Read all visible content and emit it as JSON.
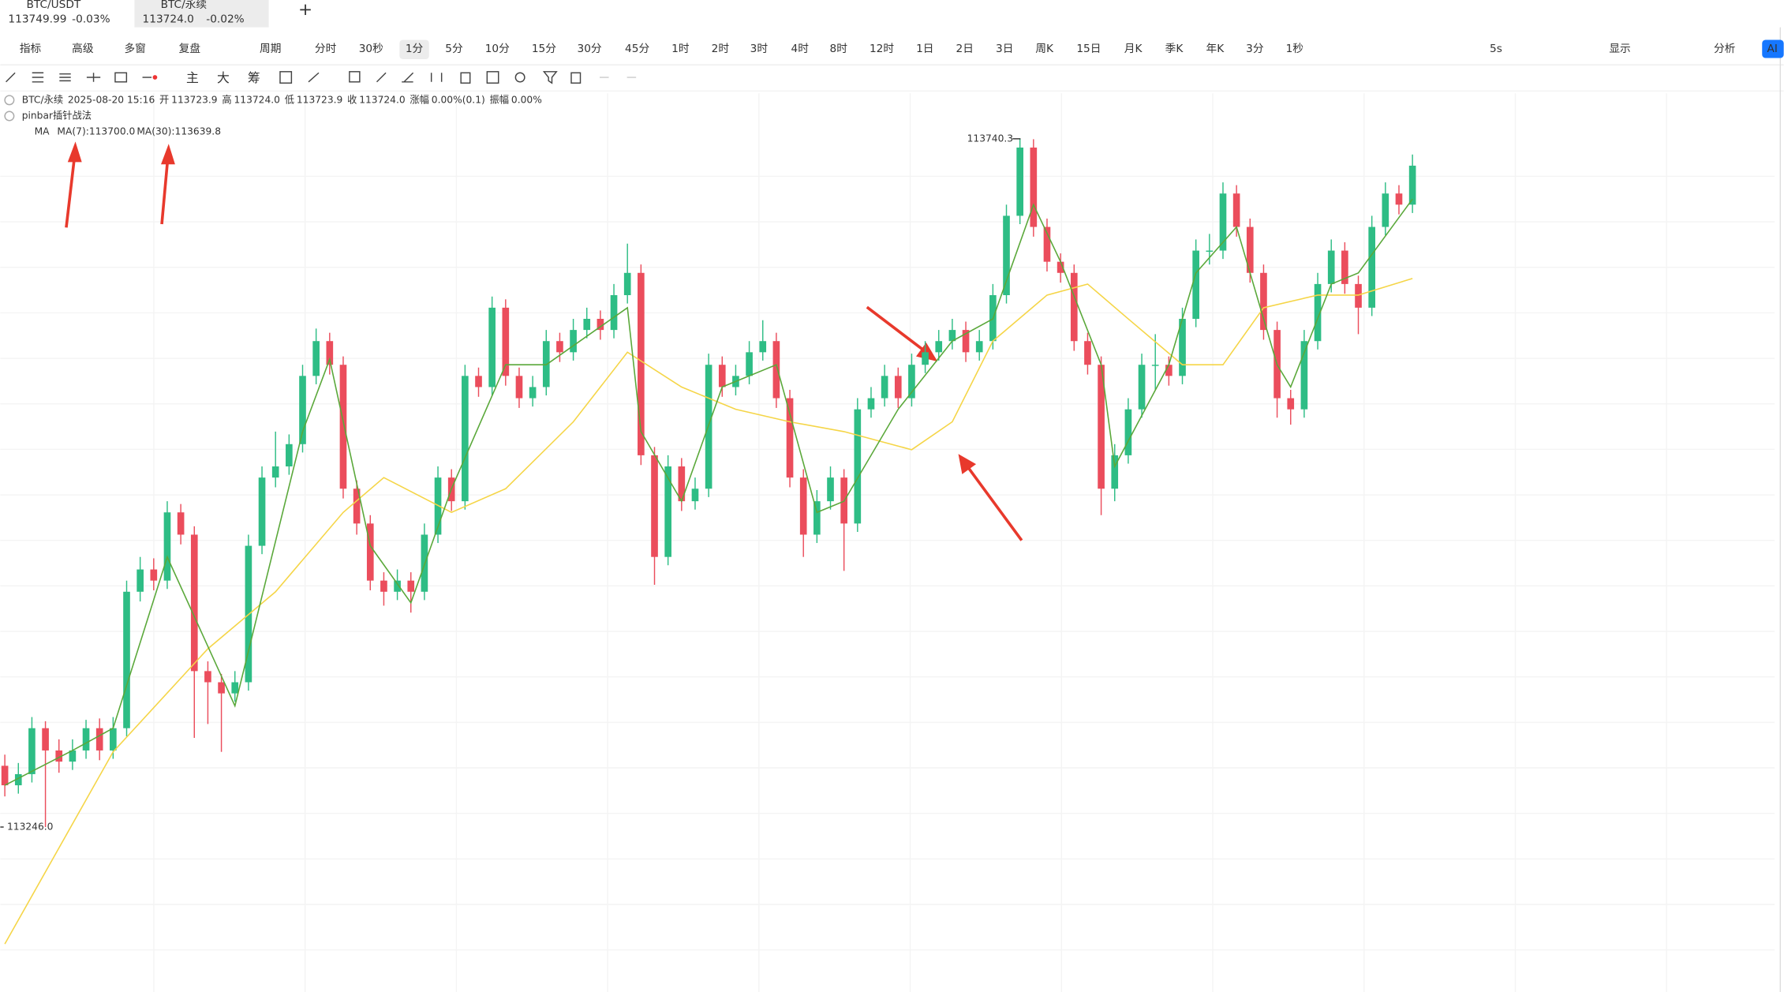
{
  "tabs": [
    {
      "name": "BTC/USDT",
      "price": "113749.99",
      "change": "-0.03%"
    },
    {
      "name": "BTC/永续",
      "price": "113724.0",
      "change": "-0.02%"
    }
  ],
  "toolbar": {
    "left": [
      "指标",
      "高级",
      "多窗",
      "复盘",
      "周期"
    ],
    "periods": [
      "分时",
      "30秒",
      "1分",
      "5分",
      "10分",
      "15分",
      "30分",
      "45分",
      "1时",
      "2时",
      "3时",
      "4时",
      "8时",
      "12时",
      "1日",
      "2日",
      "3日",
      "周K",
      "15日",
      "月K",
      "季K",
      "年K",
      "3分",
      "1秒"
    ],
    "right": [
      "5s",
      "显示",
      "分析",
      "AI"
    ]
  },
  "drawing_tools": [
    "主",
    "大",
    "筹"
  ],
  "info": {
    "symbol": "BTC/永续",
    "time": "2025-08-20 15:16",
    "fields": [
      {
        "label": "开",
        "value": "113723.9"
      },
      {
        "label": "高",
        "value": "113724.0"
      },
      {
        "label": "低",
        "value": "113723.9"
      },
      {
        "label": "收",
        "value": "113724.0"
      },
      {
        "label": "涨幅",
        "value": "0.00%(0.1)"
      },
      {
        "label": "振幅",
        "value": "0.00%"
      }
    ]
  },
  "strategy": "pinbar插针战法",
  "indicator": {
    "name": "MA",
    "ma7": "MA(7):113700.0",
    "ma30": "MA(30):113639.8"
  },
  "chart": {
    "type": "candlestick",
    "up_color": "#2ebd85",
    "down_color": "#eb4d5c",
    "high_marker": {
      "value": 113740.3,
      "label": "113740.3"
    },
    "low_marker": {
      "value": 113246.0,
      "label": "113246.0"
    },
    "candles": [
      [
        113290,
        113298,
        113268,
        113276
      ],
      [
        113276,
        113292,
        113270,
        113284
      ],
      [
        113284,
        113325,
        113278,
        113317
      ],
      [
        113317,
        113322,
        113246,
        113301
      ],
      [
        113301,
        113309,
        113285,
        113293
      ],
      [
        113293,
        113309,
        113287,
        113301
      ],
      [
        113301,
        113323,
        113295,
        113317
      ],
      [
        113317,
        113324,
        113294,
        113301
      ],
      [
        113301,
        113325,
        113295,
        113317
      ],
      [
        113317,
        113423,
        113311,
        113415
      ],
      [
        113415,
        113440,
        113408,
        113431
      ],
      [
        113431,
        113439,
        113416,
        113423
      ],
      [
        113423,
        113480,
        113417,
        113472
      ],
      [
        113472,
        113478,
        113449,
        113456
      ],
      [
        113456,
        113462,
        113310,
        113358
      ],
      [
        113358,
        113365,
        113320,
        113350
      ],
      [
        113350,
        113356,
        113300,
        113342
      ],
      [
        113342,
        113358,
        113336,
        113350
      ],
      [
        113350,
        113456,
        113344,
        113448
      ],
      [
        113448,
        113505,
        113442,
        113497
      ],
      [
        113497,
        113530,
        113490,
        113505
      ],
      [
        113505,
        113528,
        113499,
        113521
      ],
      [
        113521,
        113578,
        113515,
        113570
      ],
      [
        113570,
        113604,
        113564,
        113595
      ],
      [
        113595,
        113601,
        113571,
        113578
      ],
      [
        113578,
        113584,
        113482,
        113489
      ],
      [
        113489,
        113495,
        113456,
        113464
      ],
      [
        113464,
        113470,
        113416,
        113423
      ],
      [
        113423,
        113429,
        113405,
        113415
      ],
      [
        113415,
        113431,
        113409,
        113423
      ],
      [
        113423,
        113429,
        113400,
        113415
      ],
      [
        113415,
        113464,
        113409,
        113456
      ],
      [
        113456,
        113505,
        113450,
        113497
      ],
      [
        113497,
        113503,
        113473,
        113480
      ],
      [
        113480,
        113578,
        113474,
        113570
      ],
      [
        113570,
        113576,
        113555,
        113562
      ],
      [
        113562,
        113627,
        113556,
        113619
      ],
      [
        113619,
        113625,
        113563,
        113570
      ],
      [
        113570,
        113576,
        113547,
        113554
      ],
      [
        113554,
        113570,
        113548,
        113562
      ],
      [
        113562,
        113603,
        113556,
        113595
      ],
      [
        113595,
        113601,
        113580,
        113587
      ],
      [
        113587,
        113611,
        113581,
        113603
      ],
      [
        113603,
        113619,
        113597,
        113611
      ],
      [
        113611,
        113617,
        113596,
        113603
      ],
      [
        113603,
        113636,
        113597,
        113628
      ],
      [
        113628,
        113665,
        113622,
        113644
      ],
      [
        113644,
        113650,
        113506,
        113513
      ],
      [
        113513,
        113519,
        113420,
        113440
      ],
      [
        113440,
        113513,
        113434,
        113505
      ],
      [
        113505,
        113511,
        113473,
        113480
      ],
      [
        113480,
        113497,
        113474,
        113489
      ],
      [
        113489,
        113586,
        113483,
        113578
      ],
      [
        113578,
        113584,
        113555,
        113562
      ],
      [
        113562,
        113578,
        113556,
        113570
      ],
      [
        113570,
        113595,
        113564,
        113587
      ],
      [
        113587,
        113610,
        113581,
        113595
      ],
      [
        113595,
        113601,
        113547,
        113554
      ],
      [
        113554,
        113560,
        113490,
        113497
      ],
      [
        113497,
        113503,
        113440,
        113456
      ],
      [
        113456,
        113488,
        113450,
        113480
      ],
      [
        113480,
        113505,
        113474,
        113497
      ],
      [
        113497,
        113503,
        113430,
        113464
      ],
      [
        113464,
        113554,
        113458,
        113546
      ],
      [
        113546,
        113562,
        113540,
        113554
      ],
      [
        113554,
        113578,
        113548,
        113570
      ],
      [
        113570,
        113576,
        113547,
        113554
      ],
      [
        113554,
        113586,
        113548,
        113578
      ],
      [
        113578,
        113595,
        113572,
        113587
      ],
      [
        113587,
        113603,
        113581,
        113595
      ],
      [
        113595,
        113611,
        113589,
        113603
      ],
      [
        113603,
        113609,
        113580,
        113587
      ],
      [
        113587,
        113603,
        113581,
        113595
      ],
      [
        113595,
        113636,
        113589,
        113628
      ],
      [
        113628,
        113693,
        113622,
        113685
      ],
      [
        113685,
        113740.3,
        113679,
        113734
      ],
      [
        113734,
        113740,
        113670,
        113677
      ],
      [
        113677,
        113683,
        113645,
        113652
      ],
      [
        113652,
        113658,
        113637,
        113644
      ],
      [
        113644,
        113650,
        113588,
        113595
      ],
      [
        113595,
        113601,
        113571,
        113578
      ],
      [
        113578,
        113584,
        113470,
        113489
      ],
      [
        113489,
        113521,
        113480,
        113513
      ],
      [
        113513,
        113554,
        113507,
        113546
      ],
      [
        113546,
        113586,
        113540,
        113578
      ],
      [
        113578,
        113600,
        113560,
        113578
      ],
      [
        113578,
        113584,
        113563,
        113570
      ],
      [
        113570,
        113619,
        113564,
        113611
      ],
      [
        113611,
        113668,
        113605,
        113660
      ],
      [
        113660,
        113672,
        113650,
        113660
      ],
      [
        113660,
        113709,
        113654,
        113701
      ],
      [
        113701,
        113707,
        113670,
        113677
      ],
      [
        113677,
        113683,
        113637,
        113644
      ],
      [
        113644,
        113650,
        113596,
        113603
      ],
      [
        113603,
        113609,
        113540,
        113554
      ],
      [
        113554,
        113560,
        113535,
        113546
      ],
      [
        113546,
        113603,
        113540,
        113595
      ],
      [
        113595,
        113644,
        113589,
        113636
      ],
      [
        113636,
        113668,
        113630,
        113660
      ],
      [
        113660,
        113666,
        113629,
        113636
      ],
      [
        113636,
        113642,
        113600,
        113619
      ],
      [
        113619,
        113685,
        113613,
        113677
      ],
      [
        113677,
        113709,
        113671,
        113701
      ],
      [
        113701,
        113707,
        113686,
        113693
      ],
      [
        113693,
        113729,
        113687,
        113721
      ]
    ],
    "ma7": {
      "color": "#5aa83a",
      "x": [
        0,
        5,
        8,
        12,
        17,
        22,
        24,
        27,
        30,
        33,
        37,
        40,
        46,
        47,
        50,
        53,
        57,
        60,
        62,
        66,
        70,
        73,
        76,
        78,
        81,
        82,
        86,
        88,
        91,
        92,
        94,
        95,
        98,
        100,
        104
      ],
      "values": [
        113276,
        113301,
        113317,
        113440,
        113333,
        113530,
        113582,
        113448,
        113407,
        113489,
        113578,
        113578,
        113619,
        113530,
        113480,
        113562,
        113578,
        113472,
        113480,
        113546,
        113595,
        113611,
        113693,
        113652,
        113578,
        113505,
        113578,
        113644,
        113677,
        113644,
        113578,
        113562,
        113636,
        113644,
        113697
      ]
    },
    "ma30": {
      "color": "#f5d547",
      "x": [
        0,
        8,
        15,
        20,
        25,
        28,
        33,
        37,
        42,
        46,
        50,
        54,
        58,
        62,
        67,
        70,
        73,
        77,
        80,
        83,
        87,
        90,
        93,
        97,
        100,
        104
      ],
      "values": [
        113162,
        113300,
        113374,
        113415,
        113472,
        113497,
        113472,
        113489,
        113537,
        113587,
        113562,
        113546,
        113537,
        113530,
        113517,
        113537,
        113595,
        113628,
        113636,
        113611,
        113578,
        113578,
        113619,
        113628,
        113628,
        113640
      ]
    }
  }
}
